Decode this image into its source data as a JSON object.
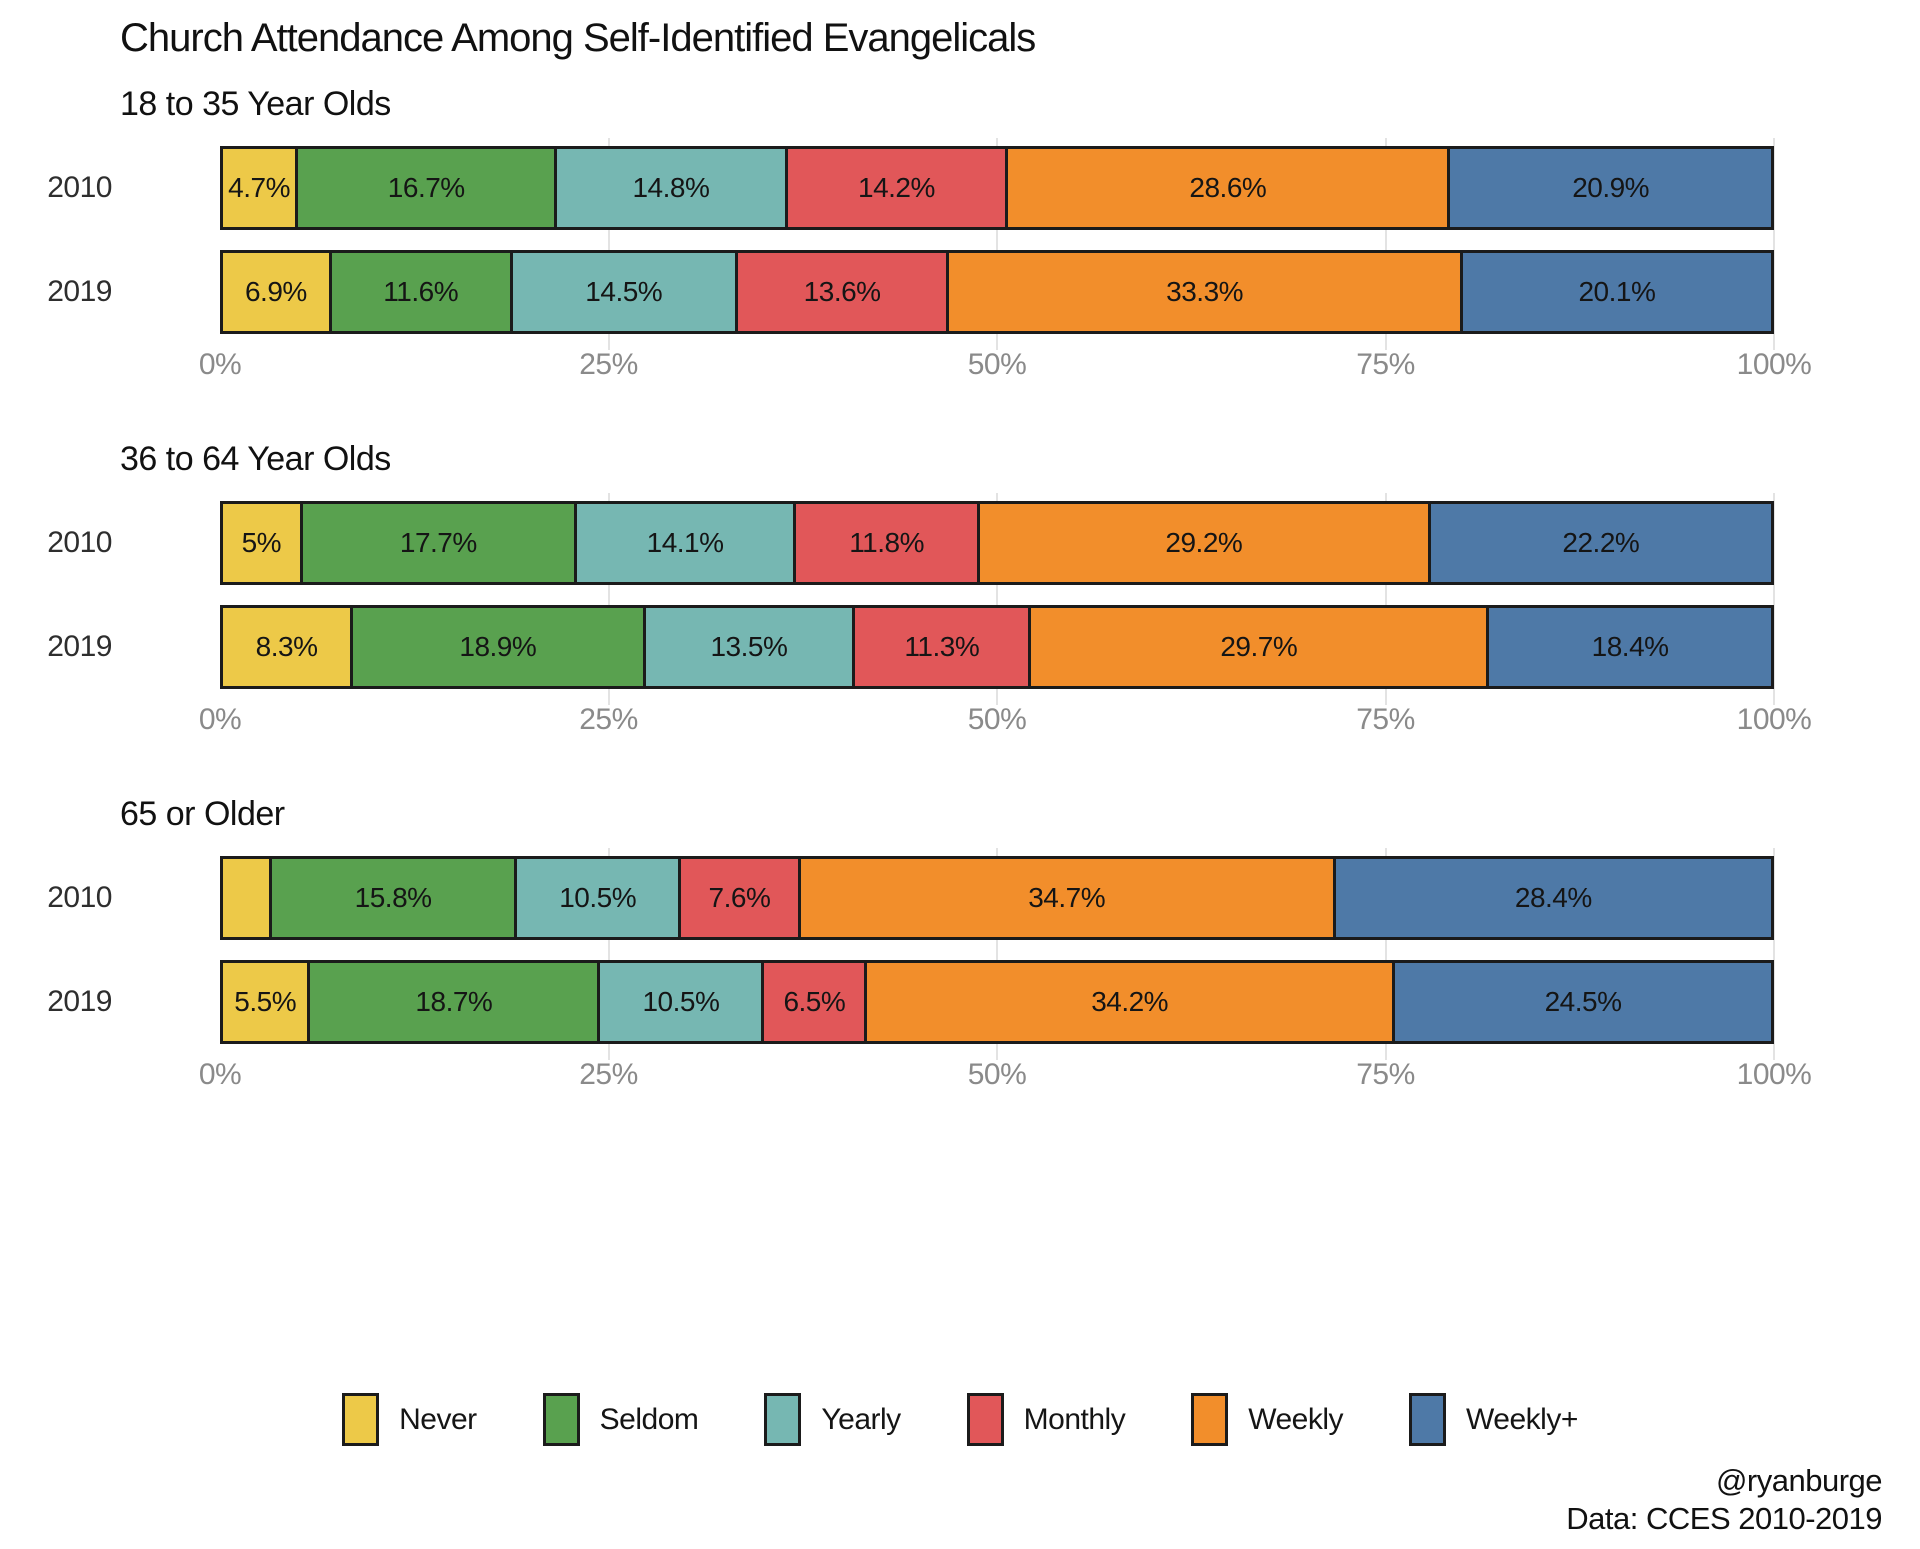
{
  "title": "Church Attendance Among Self-Identified Evangelicals",
  "footer": {
    "handle": "@ryanburge",
    "source": "Data: CCES 2010-2019"
  },
  "chart_data": {
    "type": "bar",
    "variant": "horizontal-stacked-percent",
    "title": "Church Attendance Among Self-Identified Evangelicals",
    "categories": [
      "Never",
      "Seldom",
      "Yearly",
      "Monthly",
      "Weekly",
      "Weekly+"
    ],
    "colors": [
      "#EDC948",
      "#59A14F",
      "#76B7B2",
      "#E15759",
      "#F28E2B",
      "#4E79A7"
    ],
    "border_color": "#1b1b1b",
    "gridline_color": "#e3e3e3",
    "x_axis": {
      "range": [
        0,
        100
      ],
      "tick_labels": [
        "0%",
        "25%",
        "50%",
        "75%",
        "100%"
      ],
      "tick_values": [
        0,
        25,
        50,
        75,
        100
      ],
      "grid_values": [
        25,
        50,
        75,
        100
      ]
    },
    "legend": {
      "position": "bottom",
      "entries": [
        "Never",
        "Seldom",
        "Yearly",
        "Monthly",
        "Weekly",
        "Weekly+"
      ]
    },
    "panels": [
      {
        "subtitle": "18 to 35 Year Olds",
        "rows": [
          {
            "year": "2010",
            "values": [
              4.7,
              16.7,
              14.8,
              14.2,
              28.6,
              20.9
            ],
            "labels": [
              "4.7%",
              "16.7%",
              "14.8%",
              "14.2%",
              "28.6%",
              "20.9%"
            ]
          },
          {
            "year": "2019",
            "values": [
              6.9,
              11.6,
              14.5,
              13.6,
              33.3,
              20.1
            ],
            "labels": [
              "6.9%",
              "11.6%",
              "14.5%",
              "13.6%",
              "33.3%",
              "20.1%"
            ]
          }
        ]
      },
      {
        "subtitle": "36 to 64 Year Olds",
        "rows": [
          {
            "year": "2010",
            "values": [
              5,
              17.7,
              14.1,
              11.8,
              29.2,
              22.2
            ],
            "labels": [
              "5%",
              "17.7%",
              "14.1%",
              "11.8%",
              "29.2%",
              "22.2%"
            ]
          },
          {
            "year": "2019",
            "values": [
              8.3,
              18.9,
              13.5,
              11.3,
              29.7,
              18.4
            ],
            "labels": [
              "8.3%",
              "18.9%",
              "13.5%",
              "11.3%",
              "29.7%",
              "18.4%"
            ]
          }
        ]
      },
      {
        "subtitle": "65 or Older",
        "rows": [
          {
            "year": "2010",
            "values": [
              3.0,
              15.8,
              10.5,
              7.6,
              34.7,
              28.4
            ],
            "labels": [
              "",
              "15.8%",
              "10.5%",
              "7.6%",
              "34.7%",
              "28.4%"
            ]
          },
          {
            "year": "2019",
            "values": [
              5.5,
              18.7,
              10.5,
              6.5,
              34.2,
              24.5
            ],
            "labels": [
              "5.5%",
              "18.7%",
              "10.5%",
              "6.5%",
              "34.2%",
              "24.5%"
            ]
          }
        ]
      }
    ]
  }
}
